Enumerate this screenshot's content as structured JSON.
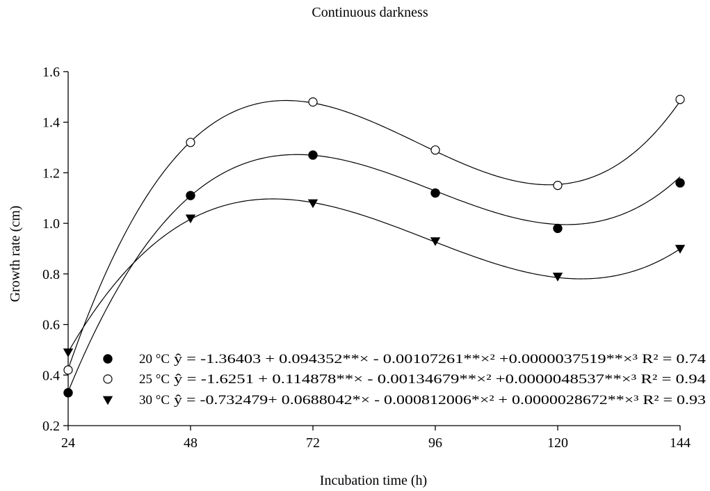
{
  "chart_data": {
    "type": "scatter",
    "title": "Continuous darkness",
    "xlabel": "Incubation time (h)",
    "ylabel": "Growth rate (cm)",
    "xlim": [
      24,
      144
    ],
    "ylim": [
      0.2,
      1.6
    ],
    "x_ticks": [
      "24",
      "48",
      "72",
      "96",
      "120",
      "144"
    ],
    "y_ticks": [
      "0.2",
      "0.4",
      "0.6",
      "0.8",
      "1.0",
      "1.2",
      "1.4",
      "1.6"
    ],
    "x": [
      24,
      48,
      72,
      96,
      120,
      144
    ],
    "grid": false,
    "legend_position": "bottom-left",
    "series": [
      {
        "name": "20 °C",
        "marker": "filled-circle",
        "values": [
          0.33,
          1.11,
          1.27,
          1.12,
          0.98,
          1.16
        ],
        "equation": "ŷ = -1.36403 + 0.094352**× - 0.00107261**×² +0.0000037519**×³ R² = 0.74",
        "coefficients": [
          -1.36403,
          0.094352,
          -0.00107261,
          3.7519e-06
        ]
      },
      {
        "name": "25 °C",
        "marker": "open-circle",
        "values": [
          0.42,
          1.32,
          1.48,
          1.29,
          1.15,
          1.49
        ],
        "equation": "ŷ = -1.6251 + 0.114878**× - 0.00134679**×² +0.0000048537**×³ R² = 0.94",
        "coefficients": [
          -1.6251,
          0.114878,
          -0.00134679,
          4.8537e-06
        ]
      },
      {
        "name": "30 °C",
        "marker": "filled-triangle-down",
        "values": [
          0.49,
          1.02,
          1.08,
          0.93,
          0.79,
          0.9
        ],
        "equation": "ŷ = -0.732479+ 0.0688042*× - 0.000812006*×² + 0.0000028672**×³ R² = 0.93",
        "coefficients": [
          -0.732479,
          0.0688042,
          -0.000812006,
          2.8672e-06
        ]
      }
    ]
  }
}
